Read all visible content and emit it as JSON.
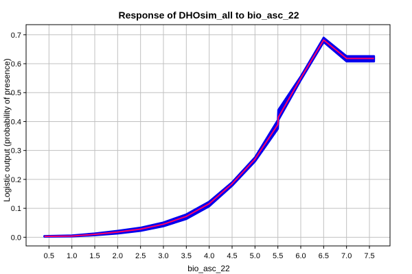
{
  "chart_data": {
    "type": "line",
    "title": "Response of DHOsim_all to bio_asc_22",
    "xlabel": "bio_asc_22",
    "ylabel": "Logistic output (probability of presence)",
    "xlim": [
      0.0,
      7.95
    ],
    "ylim": [
      -0.03,
      0.735
    ],
    "xticks": [
      "0.5",
      "1.0",
      "1.5",
      "2.0",
      "2.5",
      "3.0",
      "3.5",
      "4.0",
      "4.5",
      "5.0",
      "5.5",
      "6.0",
      "6.5",
      "7.0",
      "7.5"
    ],
    "yticks": [
      "0.0",
      "0.1",
      "0.2",
      "0.3",
      "0.4",
      "0.5",
      "0.6",
      "0.7"
    ],
    "grid": true,
    "colors": {
      "band": "#0000ee",
      "mean": "#ff0066",
      "grid": "#c0c0c0"
    },
    "series": [
      {
        "role": "mean",
        "x": [
          0.4,
          1.0,
          1.5,
          2.0,
          2.5,
          3.0,
          3.5,
          4.0,
          4.5,
          5.0,
          5.5,
          5.51,
          6.0,
          6.5,
          7.0,
          7.6
        ],
        "y": [
          0.003,
          0.004,
          0.01,
          0.018,
          0.028,
          0.045,
          0.072,
          0.116,
          0.185,
          0.27,
          0.39,
          0.415,
          0.55,
          0.682,
          0.618,
          0.618
        ]
      },
      {
        "role": "band_upper",
        "x": [
          0.4,
          1.0,
          1.5,
          2.0,
          2.5,
          3.0,
          3.5,
          4.0,
          4.5,
          5.0,
          5.5,
          5.51,
          6.0,
          6.5,
          7.0,
          7.6
        ],
        "y": [
          0.004,
          0.006,
          0.013,
          0.022,
          0.033,
          0.051,
          0.079,
          0.123,
          0.19,
          0.276,
          0.405,
          0.44,
          0.556,
          0.69,
          0.626,
          0.626
        ]
      },
      {
        "role": "band_lower",
        "x": [
          0.4,
          1.0,
          1.5,
          2.0,
          2.5,
          3.0,
          3.5,
          4.0,
          4.5,
          5.0,
          5.5,
          5.51,
          6.0,
          6.5,
          7.0,
          7.6
        ],
        "y": [
          0.002,
          0.003,
          0.007,
          0.013,
          0.022,
          0.038,
          0.063,
          0.107,
          0.178,
          0.262,
          0.375,
          0.405,
          0.543,
          0.675,
          0.608,
          0.608
        ]
      }
    ]
  }
}
